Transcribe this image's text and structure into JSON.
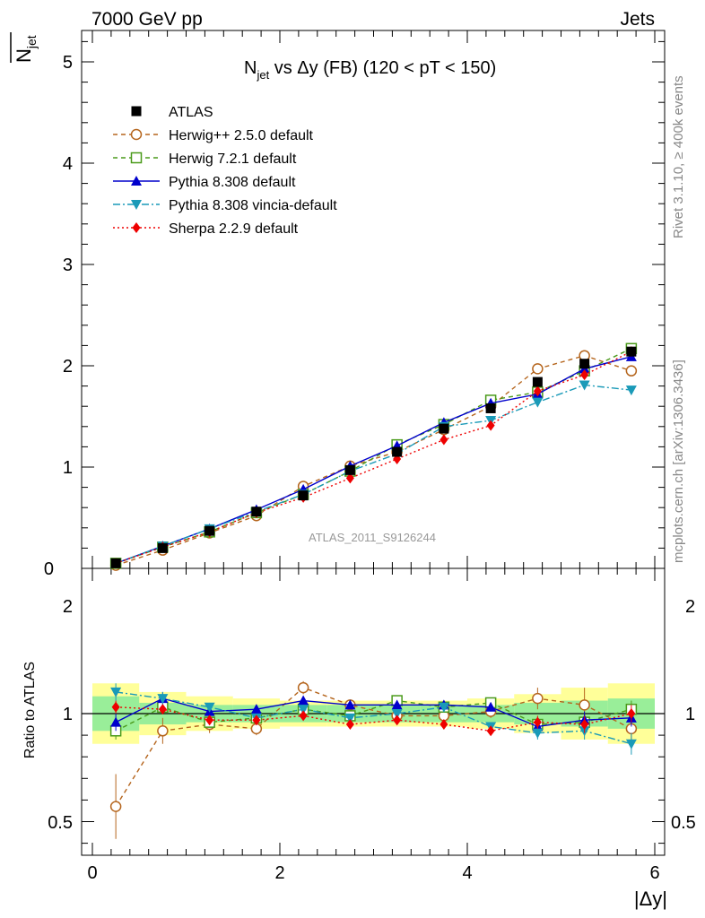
{
  "header": {
    "energy_label": "7000 GeV pp",
    "category_label": "Jets",
    "rivet_label": "Rivet 3.1.10, ≥ 400k events",
    "mcplots_label": "mcplots.cern.ch [arXiv:1306.3436]",
    "watermark": "ATLAS_2011_S9126244"
  },
  "chart_data": {
    "type": "line",
    "title_main": "N",
    "title_sub": "jet",
    "title_rest": " vs Δy (FB) (120 < pT < 150)",
    "ylabel_top_main": "N",
    "ylabel_top_sub": "jet",
    "ylabel_bottom": "Ratio to ATLAS",
    "xlabel": "|Δy|",
    "xlim": [
      0,
      6
    ],
    "ylim_top": [
      0,
      5.3
    ],
    "ylim_bottom": [
      0.4,
      2.3
    ],
    "x_ticks": [
      "0",
      "2",
      "4",
      "6"
    ],
    "y_ticks_top": [
      "0",
      "1",
      "2",
      "3",
      "4",
      "5"
    ],
    "y_ticks_bottom": [
      "0.5",
      "1",
      "2"
    ],
    "x": [
      0.25,
      0.75,
      1.25,
      1.75,
      2.25,
      2.75,
      3.25,
      3.75,
      4.25,
      4.75,
      5.25,
      5.75
    ],
    "bin_edges": [
      0,
      0.5,
      1.0,
      1.5,
      2.0,
      2.5,
      3.0,
      3.5,
      4.0,
      4.5,
      5.0,
      5.5,
      6.0
    ],
    "data": {
      "name": "ATLAS",
      "values": [
        0.05,
        0.2,
        0.37,
        0.56,
        0.72,
        0.97,
        1.15,
        1.38,
        1.58,
        1.84,
        2.02,
        2.14
      ],
      "band_inner": [
        0.08,
        0.05,
        0.04,
        0.04,
        0.04,
        0.04,
        0.04,
        0.04,
        0.04,
        0.05,
        0.06,
        0.07
      ],
      "band_outer": [
        0.14,
        0.1,
        0.08,
        0.07,
        0.06,
        0.06,
        0.06,
        0.06,
        0.07,
        0.09,
        0.12,
        0.14
      ]
    },
    "series": [
      {
        "name": "Herwig++ 2.5.0 default",
        "color": "#b5651d",
        "marker": "open-circle",
        "dash": "5,4",
        "values": [
          0.03,
          0.18,
          0.35,
          0.52,
          0.81,
          1.01,
          1.15,
          1.37,
          1.6,
          1.97,
          2.1,
          1.95
        ],
        "ratio": [
          0.57,
          0.92,
          0.95,
          0.93,
          1.12,
          1.04,
          0.99,
          0.99,
          1.01,
          1.07,
          1.04,
          0.93
        ],
        "ratio_err": [
          0.15,
          0.06,
          0.04,
          0.03,
          0.03,
          0.02,
          0.02,
          0.02,
          0.03,
          0.05,
          0.08,
          0.06
        ]
      },
      {
        "name": "Herwig 7.2.1 default",
        "color": "#4a9a1a",
        "marker": "open-square",
        "dash": "5,4",
        "values": [
          0.05,
          0.21,
          0.36,
          0.55,
          0.73,
          0.96,
          1.22,
          1.42,
          1.66,
          1.74,
          1.95,
          2.17
        ],
        "ratio": [
          0.92,
          1.03,
          0.96,
          0.98,
          1.02,
          0.99,
          1.06,
          1.03,
          1.05,
          0.95,
          0.96,
          1.02
        ],
        "ratio_err": [
          0.04,
          0.03,
          0.02,
          0.02,
          0.02,
          0.02,
          0.02,
          0.02,
          0.02,
          0.03,
          0.04,
          0.04
        ]
      },
      {
        "name": "Pythia 8.308 default",
        "color": "#0000cc",
        "marker": "triangle-up",
        "dash": "",
        "values": [
          0.05,
          0.22,
          0.39,
          0.58,
          0.78,
          1.01,
          1.21,
          1.44,
          1.63,
          1.72,
          1.97,
          2.09
        ],
        "ratio": [
          0.96,
          1.07,
          1.01,
          1.02,
          1.06,
          1.04,
          1.04,
          1.04,
          1.03,
          0.94,
          0.97,
          0.98
        ],
        "ratio_err": [
          0.04,
          0.03,
          0.02,
          0.02,
          0.02,
          0.02,
          0.02,
          0.02,
          0.02,
          0.03,
          0.04,
          0.04
        ]
      },
      {
        "name": "Pythia 8.308 vincia-default",
        "color": "#1a9ab8",
        "marker": "triangle-down",
        "dash": "8,3,2,3",
        "values": [
          0.05,
          0.22,
          0.39,
          0.56,
          0.73,
          0.96,
          1.13,
          1.4,
          1.46,
          1.64,
          1.81,
          1.76
        ],
        "ratio": [
          1.1,
          1.07,
          1.03,
          0.98,
          1.02,
          0.98,
          1.0,
          1.03,
          0.94,
          0.91,
          0.92,
          0.86
        ],
        "ratio_err": [
          0.04,
          0.03,
          0.02,
          0.02,
          0.02,
          0.02,
          0.02,
          0.02,
          0.02,
          0.03,
          0.04,
          0.05
        ]
      },
      {
        "name": "Sherpa 2.2.9 default",
        "color": "#ee0000",
        "marker": "diamond",
        "dash": "2,3",
        "values": [
          0.05,
          0.21,
          0.36,
          0.55,
          0.7,
          0.89,
          1.08,
          1.27,
          1.41,
          1.75,
          1.91,
          2.14
        ],
        "ratio": [
          1.03,
          1.02,
          0.97,
          0.97,
          0.99,
          0.95,
          0.97,
          0.95,
          0.92,
          0.96,
          0.95,
          1.0
        ],
        "ratio_err": [
          0.03,
          0.02,
          0.02,
          0.02,
          0.02,
          0.02,
          0.02,
          0.02,
          0.02,
          0.03,
          0.04,
          0.04
        ]
      }
    ]
  }
}
